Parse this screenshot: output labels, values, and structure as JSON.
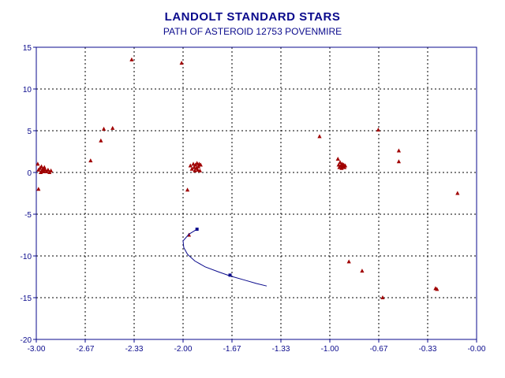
{
  "chart_data": {
    "type": "scatter",
    "title": "LANDOLT STANDARD STARS",
    "subtitle": "PATH OF ASTEROID 12753 POVENMIRE",
    "xlabel": "",
    "ylabel": "",
    "xlim": [
      -3.0,
      0.0
    ],
    "ylim": [
      -20,
      15
    ],
    "xticks": [
      "-3.00",
      "-2.67",
      "-2.33",
      "-2.00",
      "-1.67",
      "-1.33",
      "-1.00",
      "-0.67",
      "-0.33",
      "-0.00"
    ],
    "yticks": [
      "15",
      "10",
      "5",
      "0",
      "-5",
      "-10",
      "-15",
      "-20"
    ],
    "grid": true,
    "colors": {
      "stars": "#a00000",
      "path": "#0a0a8c",
      "axes": "#0a0a8c"
    },
    "stars": [
      [
        -2.99,
        1.0
      ],
      [
        -2.985,
        0.3
      ],
      [
        -2.975,
        0.5
      ],
      [
        -2.97,
        0.0
      ],
      [
        -2.965,
        0.7
      ],
      [
        -2.96,
        0.2
      ],
      [
        -2.955,
        0.4
      ],
      [
        -2.95,
        0.1
      ],
      [
        -2.945,
        0.6
      ],
      [
        -2.94,
        0.3
      ],
      [
        -2.93,
        0.1
      ],
      [
        -2.92,
        0.3
      ],
      [
        -2.91,
        0.0
      ],
      [
        -2.9,
        0.2
      ],
      [
        -2.985,
        -2.0
      ],
      [
        -2.63,
        1.4
      ],
      [
        -2.56,
        3.8
      ],
      [
        -2.54,
        5.2
      ],
      [
        -2.48,
        5.3
      ],
      [
        -2.35,
        13.5
      ],
      [
        -2.01,
        13.1
      ],
      [
        -1.97,
        -2.1
      ],
      [
        -1.95,
        0.8
      ],
      [
        -1.94,
        0.4
      ],
      [
        -1.93,
        1.0
      ],
      [
        -1.925,
        0.6
      ],
      [
        -1.92,
        0.2
      ],
      [
        -1.915,
        0.9
      ],
      [
        -1.91,
        0.5
      ],
      [
        -1.905,
        1.1
      ],
      [
        -1.9,
        0.3
      ],
      [
        -1.895,
        0.7
      ],
      [
        -1.89,
        1.0
      ],
      [
        -1.885,
        0.2
      ],
      [
        -1.88,
        0.9
      ],
      [
        -1.07,
        4.3
      ],
      [
        -0.945,
        1.6
      ],
      [
        -0.94,
        0.9
      ],
      [
        -0.935,
        0.6
      ],
      [
        -0.93,
        1.2
      ],
      [
        -0.925,
        0.8
      ],
      [
        -0.92,
        0.5
      ],
      [
        -0.915,
        1.0
      ],
      [
        -0.91,
        0.7
      ],
      [
        -0.905,
        0.9
      ],
      [
        -0.9,
        0.6
      ],
      [
        -0.895,
        0.8
      ],
      [
        -0.67,
        5.1
      ],
      [
        -0.53,
        2.6
      ],
      [
        -0.53,
        1.3
      ],
      [
        -0.13,
        -2.5
      ],
      [
        -0.87,
        -10.7
      ],
      [
        -0.78,
        -11.8
      ],
      [
        -0.64,
        -15.0
      ],
      [
        -0.28,
        -13.9
      ],
      [
        -0.27,
        -14.0
      ],
      [
        -1.96,
        -7.5
      ]
    ],
    "asteroid_path": [
      [
        -1.905,
        -6.8
      ],
      [
        -1.96,
        -7.4
      ],
      [
        -2.0,
        -8.2
      ],
      [
        -1.995,
        -9.0
      ],
      [
        -1.97,
        -9.8
      ],
      [
        -1.92,
        -10.6
      ],
      [
        -1.85,
        -11.3
      ],
      [
        -1.76,
        -11.9
      ],
      [
        -1.68,
        -12.4
      ],
      [
        -1.58,
        -12.9
      ],
      [
        -1.5,
        -13.3
      ],
      [
        -1.43,
        -13.6
      ]
    ],
    "asteroid_markers": [
      [
        -1.905,
        -6.8
      ],
      [
        -1.68,
        -12.3
      ]
    ]
  }
}
